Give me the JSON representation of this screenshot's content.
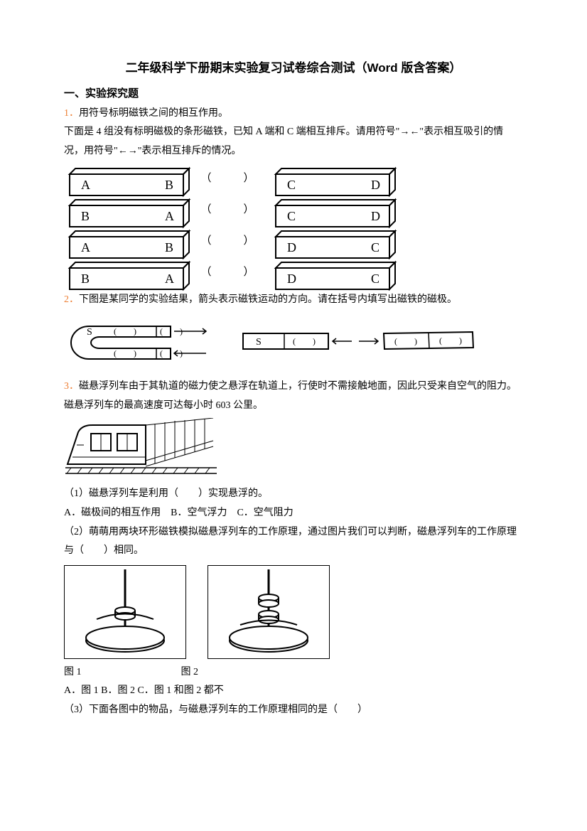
{
  "title": "二年级科学下册期末实验复习试卷综合测试（Word 版含答案）",
  "section1": "一、实验探究题",
  "q1": {
    "num": "1．",
    "head": "用符号标明磁铁之间的相互作用。",
    "body": "下面是 4 组没有标明磁极的条形磁铁，已知 A 端和 C 端相互排斥。请用符号\"→←\"表示相互吸引的情况，用符号\"←→\"表示相互排斥的情况。",
    "rows": [
      {
        "l1": "A",
        "l2": "B",
        "r1": "C",
        "r2": "D"
      },
      {
        "l1": "B",
        "l2": "A",
        "r1": "C",
        "r2": "D"
      },
      {
        "l1": "A",
        "l2": "B",
        "r1": "D",
        "r2": "C"
      },
      {
        "l1": "B",
        "l2": "A",
        "r1": "D",
        "r2": "C"
      }
    ],
    "paren_l": "（",
    "paren_r": "）"
  },
  "q2": {
    "num": "2．",
    "text": "下图是某同学的实验结果，箭头表示磁铁运动的方向。请在括号内填写出磁铁的磁极。",
    "S": "S",
    "S_bar": "S",
    "blank": "（　　）"
  },
  "q3": {
    "num": "3．",
    "text": "磁悬浮列车由于其轨道的磁力使之悬浮在轨道上，行使时不需接触地面，因此只受来自空气的阻力。磁悬浮列车的最高速度可达每小时 603 公里。",
    "p1": "（1）磁悬浮列车是利用（　　）实现悬浮的。",
    "p1opts": "A．磁极间的相互作用　B．空气浮力　C．空气阻力",
    "p2a": "（2）萌萌用两块环形磁铁模拟磁悬浮列车的工作原理，通过图片我们可以判断，磁悬浮列车的工作原理与（　　）相同。",
    "fig1": "图 1",
    "fig2": "图 2",
    "p2opts": "A．图 1 B．图 2 C．图 1 和图 2 都不",
    "p3": "（3）下面各图中的物品，与磁悬浮列车的工作原理相同的是（　　）"
  },
  "colors": {
    "qnum": "#ed7d31",
    "text": "#000000",
    "bg": "#ffffff"
  }
}
